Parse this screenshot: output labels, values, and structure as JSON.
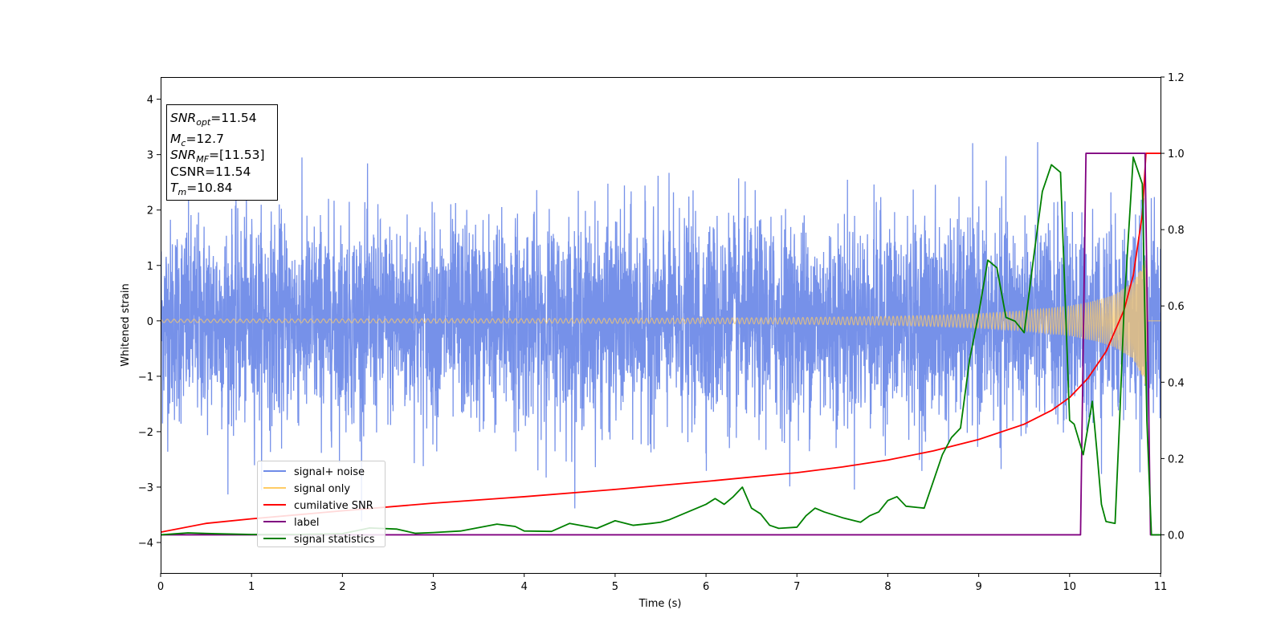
{
  "chart_data": {
    "type": "line",
    "xlabel": "Time (s)",
    "ylabel": "Whitened strain",
    "xlim": [
      0,
      11
    ],
    "ylim": [
      -4.55,
      4.4
    ],
    "y2lim": [
      -0.1,
      1.2
    ],
    "x_ticks": [
      "0",
      "1",
      "2",
      "3",
      "4",
      "5",
      "6",
      "7",
      "8",
      "9",
      "10",
      "11"
    ],
    "y_ticks": [
      "−4",
      "−3",
      "−2",
      "−1",
      "0",
      "1",
      "2",
      "3",
      "4"
    ],
    "y2_ticks": [
      "0.0",
      "0.2",
      "0.4",
      "0.6",
      "0.8",
      "1.0",
      "1.2"
    ],
    "info_box": {
      "snr_opt": "=11.54",
      "mc": "=12.7",
      "snr_mf": "=[11.53]",
      "csnr": "CSNR=11.54",
      "tm": "=10.84"
    },
    "legend": {
      "position": "lower-left",
      "entries": [
        {
          "label": "signal+ noise",
          "color": "#6f8be8"
        },
        {
          "label": "signal only",
          "color": "#ffcc66"
        },
        {
          "label": "cumilative SNR",
          "color": "#ff0000"
        },
        {
          "label": "label",
          "color": "#800080"
        },
        {
          "label": "signal statistics",
          "color": "#008000"
        }
      ]
    },
    "series": [
      {
        "name": "signal+ noise",
        "axis": "left",
        "noise_sigma_approx": 0.9,
        "note_values": "dense whitened strain noise, roughly Gaussian with std ~0.9 around 0, peaks near ±4"
      },
      {
        "name": "signal only",
        "axis": "left",
        "envelope": {
          "x": [
            0,
            2,
            4,
            6,
            7,
            8,
            8.5,
            9,
            9.5,
            10,
            10.3,
            10.5,
            10.7,
            10.8,
            10.84,
            10.85,
            11
          ],
          "amp": [
            0.03,
            0.035,
            0.04,
            0.05,
            0.06,
            0.08,
            0.1,
            0.13,
            0.18,
            0.27,
            0.37,
            0.48,
            0.7,
            1.0,
            1.2,
            0,
            0
          ]
        }
      },
      {
        "name": "cumilative SNR",
        "axis": "right",
        "x": [
          0,
          0.5,
          1,
          2,
          3,
          4,
          5,
          6,
          7,
          7.5,
          8,
          8.5,
          9,
          9.5,
          9.8,
          10,
          10.2,
          10.4,
          10.6,
          10.7,
          10.8,
          10.84,
          11
        ],
        "y": [
          0.007,
          0.03,
          0.042,
          0.063,
          0.083,
          0.1,
          0.119,
          0.14,
          0.163,
          0.178,
          0.196,
          0.22,
          0.25,
          0.29,
          0.326,
          0.36,
          0.41,
          0.48,
          0.59,
          0.68,
          0.84,
          1.0,
          1.0
        ]
      },
      {
        "name": "label",
        "axis": "right",
        "x": [
          0,
          10.12,
          10.18,
          10.83,
          10.89,
          11
        ],
        "y": [
          0,
          0,
          1,
          1,
          0,
          0
        ]
      },
      {
        "name": "signal statistics",
        "axis": "right",
        "x": [
          0,
          0.3,
          0.6,
          1.0,
          1.5,
          2.0,
          2.3,
          2.6,
          2.8,
          3.0,
          3.3,
          3.7,
          3.9,
          4.0,
          4.3,
          4.5,
          4.8,
          5.0,
          5.2,
          5.4,
          5.5,
          5.6,
          5.7,
          5.8,
          6.0,
          6.1,
          6.2,
          6.3,
          6.4,
          6.5,
          6.6,
          6.7,
          6.8,
          7.0,
          7.1,
          7.2,
          7.3,
          7.5,
          7.7,
          7.8,
          7.9,
          8.0,
          8.1,
          8.2,
          8.4,
          8.5,
          8.6,
          8.7,
          8.8,
          8.9,
          9.0,
          9.1,
          9.2,
          9.3,
          9.4,
          9.5,
          9.6,
          9.7,
          9.8,
          9.9,
          10.0,
          10.05,
          10.15,
          10.25,
          10.3,
          10.35,
          10.4,
          10.5,
          10.55,
          10.6,
          10.7,
          10.8,
          10.85,
          10.9,
          11.0
        ],
        "y": [
          0.0,
          0.005,
          0.003,
          0.001,
          0.001,
          0.003,
          0.018,
          0.015,
          0.004,
          0.006,
          0.01,
          0.028,
          0.022,
          0.01,
          0.009,
          0.03,
          0.017,
          0.037,
          0.025,
          0.03,
          0.033,
          0.04,
          0.05,
          0.06,
          0.08,
          0.095,
          0.08,
          0.1,
          0.125,
          0.07,
          0.055,
          0.025,
          0.017,
          0.02,
          0.05,
          0.07,
          0.06,
          0.045,
          0.033,
          0.05,
          0.06,
          0.09,
          0.1,
          0.075,
          0.07,
          0.14,
          0.21,
          0.255,
          0.28,
          0.46,
          0.58,
          0.72,
          0.7,
          0.57,
          0.56,
          0.53,
          0.72,
          0.9,
          0.97,
          0.95,
          0.3,
          0.29,
          0.21,
          0.35,
          0.22,
          0.08,
          0.035,
          0.03,
          0.3,
          0.6,
          0.99,
          0.92,
          0.3,
          0.0,
          0.0
        ]
      }
    ]
  }
}
